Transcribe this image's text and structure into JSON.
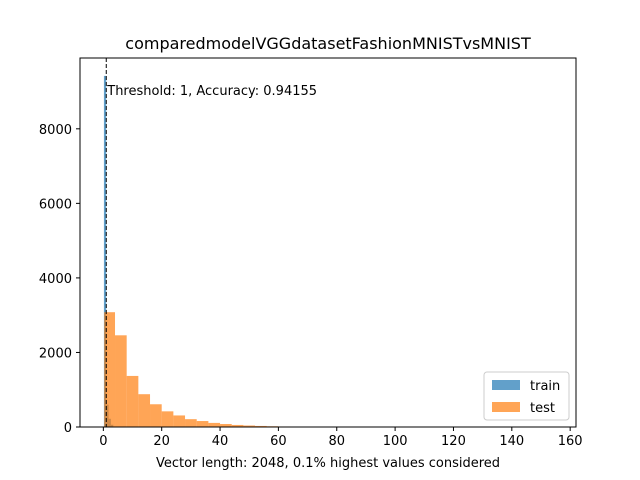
{
  "chart_data": {
    "type": "histogram",
    "title": "comparedmodelVGGdatasetFashionMNISTvsMNIST",
    "xlabel": "Vector length: 2048, 0.1% highest values considered",
    "ylabel": "",
    "xlim": [
      -8,
      162
    ],
    "ylim": [
      0,
      9900
    ],
    "xticks": [
      0,
      20,
      40,
      60,
      80,
      100,
      120,
      140,
      160
    ],
    "yticks": [
      0,
      2000,
      4000,
      6000,
      8000
    ],
    "annotation": "Threshold: 1, Accuracy: 0.94155",
    "threshold": 1,
    "legend_position": "lower right",
    "colors": {
      "train": "#1f77b4",
      "test": "#ff7f0e"
    },
    "series": [
      {
        "name": "train",
        "bins": [
          {
            "x0": 0.2,
            "x1": 1.0,
            "value": 9420
          },
          {
            "x0": 1.0,
            "x1": 1.8,
            "value": 600
          },
          {
            "x0": 1.8,
            "x1": 2.6,
            "value": 220
          },
          {
            "x0": 2.6,
            "x1": 3.4,
            "value": 60
          }
        ]
      },
      {
        "name": "test",
        "bins": [
          {
            "x0": 0.3,
            "x1": 4.0,
            "value": 3080
          },
          {
            "x0": 4.0,
            "x1": 8.0,
            "value": 2460
          },
          {
            "x0": 8.0,
            "x1": 12.0,
            "value": 1370
          },
          {
            "x0": 12.0,
            "x1": 16.0,
            "value": 880
          },
          {
            "x0": 16.0,
            "x1": 20.0,
            "value": 610
          },
          {
            "x0": 20.0,
            "x1": 24.0,
            "value": 420
          },
          {
            "x0": 24.0,
            "x1": 28.0,
            "value": 310
          },
          {
            "x0": 28.0,
            "x1": 32.0,
            "value": 210
          },
          {
            "x0": 32.0,
            "x1": 36.0,
            "value": 160
          },
          {
            "x0": 36.0,
            "x1": 40.0,
            "value": 110
          },
          {
            "x0": 40.0,
            "x1": 44.0,
            "value": 80
          },
          {
            "x0": 44.0,
            "x1": 48.0,
            "value": 55
          },
          {
            "x0": 48.0,
            "x1": 52.0,
            "value": 40
          },
          {
            "x0": 52.0,
            "x1": 56.0,
            "value": 28
          },
          {
            "x0": 56.0,
            "x1": 60.0,
            "value": 20
          },
          {
            "x0": 60.0,
            "x1": 64.0,
            "value": 14
          },
          {
            "x0": 64.0,
            "x1": 68.0,
            "value": 10
          },
          {
            "x0": 68.0,
            "x1": 72.0,
            "value": 7
          },
          {
            "x0": 72.0,
            "x1": 76.0,
            "value": 4
          },
          {
            "x0": 76.0,
            "x1": 80.0,
            "value": 3
          },
          {
            "x0": 80.0,
            "x1": 84.0,
            "value": 2
          }
        ]
      }
    ]
  }
}
